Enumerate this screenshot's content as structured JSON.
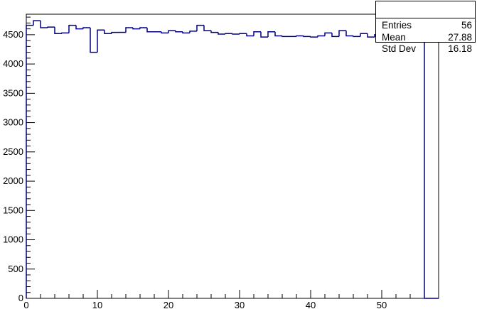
{
  "chart_data": {
    "type": "histogram",
    "title": "",
    "xlabel": "",
    "ylabel": "",
    "xlim": [
      0,
      58
    ],
    "ylim": [
      0,
      4850
    ],
    "bin_width": 1,
    "x_ticks": [
      0,
      10,
      20,
      30,
      40,
      50
    ],
    "y_ticks": [
      0,
      500,
      1000,
      1500,
      2000,
      2500,
      3000,
      3500,
      4000,
      4500
    ],
    "y_tick_labels": [
      "0",
      "500",
      "1000",
      "1500",
      "2000",
      "2500",
      "3000",
      "3500",
      "4000",
      "4500"
    ],
    "x_tick_labels": [
      "0",
      "10",
      "20",
      "30",
      "40",
      "50"
    ],
    "values": [
      4660,
      4740,
      4620,
      4630,
      4520,
      4530,
      4660,
      4600,
      4620,
      4200,
      4580,
      4520,
      4540,
      4540,
      4620,
      4600,
      4620,
      4550,
      4550,
      4530,
      4570,
      4550,
      4530,
      4560,
      4660,
      4570,
      4540,
      4510,
      4520,
      4510,
      4520,
      4480,
      4550,
      4460,
      4550,
      4480,
      4470,
      4470,
      4480,
      4470,
      4460,
      4480,
      4530,
      4470,
      4570,
      4480,
      4470,
      4520,
      4460,
      4500,
      4520,
      4490,
      4480,
      4500,
      4490,
      4480,
      0,
      0
    ],
    "line_color": "#000080",
    "grid": false,
    "stats": {
      "title": "",
      "rows": [
        {
          "name": "Entries",
          "value": "56"
        },
        {
          "name": "Mean",
          "value": "27.88"
        },
        {
          "name": "Std Dev",
          "value": "16.18"
        }
      ],
      "placement": "top-right"
    }
  }
}
